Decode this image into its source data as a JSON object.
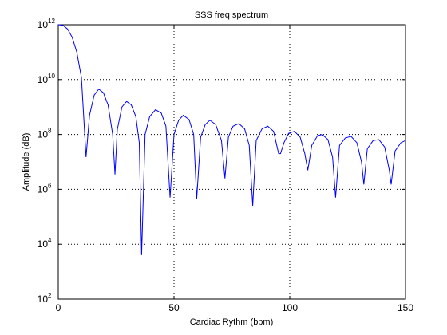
{
  "chart_data": {
    "type": "line",
    "title": "SSS freq spectrum",
    "xlabel": "Cardiac Rythm (bpm)",
    "ylabel": "Amplitude (dB)",
    "xlim": [
      0,
      150
    ],
    "ylim": [
      100,
      1000000000000
    ],
    "yscale": "log",
    "grid": true,
    "line_color": "#0000ff",
    "x_ticks": [
      0,
      50,
      100,
      150
    ],
    "y_ticks": [
      {
        "value": 100,
        "base": "10",
        "exp": "2"
      },
      {
        "value": 10000,
        "base": "10",
        "exp": "4"
      },
      {
        "value": 1000000,
        "base": "10",
        "exp": "6"
      },
      {
        "value": 100000000,
        "base": "10",
        "exp": "8"
      },
      {
        "value": 10000000000,
        "base": "10",
        "exp": "10"
      },
      {
        "value": 1000000000000,
        "base": "10",
        "exp": "12"
      }
    ],
    "series": [
      {
        "points": [
          [
            0,
            1000000000000.0
          ],
          [
            2,
            950000000000.0
          ],
          [
            4,
            700000000000.0
          ],
          [
            6,
            350000000000.0
          ],
          [
            8,
            100000000000.0
          ],
          [
            10,
            12000000000.0
          ],
          [
            12,
            15000000.0
          ],
          [
            13.5,
            500000000.0
          ],
          [
            15.5,
            2700000000.0
          ],
          [
            17.5,
            4500000000.0
          ],
          [
            19.5,
            3300000000.0
          ],
          [
            21.5,
            1200000000.0
          ],
          [
            23.5,
            100000000.0
          ],
          [
            24.5,
            3500000.0
          ],
          [
            25.5,
            150000000.0
          ],
          [
            27.5,
            1000000000.0
          ],
          [
            29.5,
            1600000000.0
          ],
          [
            31.5,
            1200000000.0
          ],
          [
            33.5,
            450000000.0
          ],
          [
            35,
            50000000.0
          ],
          [
            36,
            4000.0
          ],
          [
            37.5,
            100000000.0
          ],
          [
            39.5,
            450000000.0
          ],
          [
            42,
            800000000.0
          ],
          [
            44.5,
            600000000.0
          ],
          [
            46.5,
            200000000.0
          ],
          [
            48.3,
            500000.0
          ],
          [
            50,
            100000000.0
          ],
          [
            52,
            330000000.0
          ],
          [
            54,
            500000000.0
          ],
          [
            56.5,
            350000000.0
          ],
          [
            58.5,
            100000000.0
          ],
          [
            59.8,
            450000.0
          ],
          [
            61.5,
            80000000.0
          ],
          [
            63.5,
            230000000.0
          ],
          [
            65.5,
            330000000.0
          ],
          [
            68,
            230000000.0
          ],
          [
            70.5,
            60000000.0
          ],
          [
            72,
            2500000.0
          ],
          [
            73.5,
            80000000.0
          ],
          [
            75.5,
            200000000.0
          ],
          [
            78,
            250000000.0
          ],
          [
            80.5,
            160000000.0
          ],
          [
            82.5,
            40000000.0
          ],
          [
            84,
            250000.0
          ],
          [
            85.5,
            60000000.0
          ],
          [
            88,
            160000000.0
          ],
          [
            90.5,
            200000000.0
          ],
          [
            93,
            130000000.0
          ],
          [
            95.2,
            20000000.0
          ],
          [
            96,
            20000000.0
          ],
          [
            97.5,
            50000000.0
          ],
          [
            99.5,
            110000000.0
          ],
          [
            102,
            130000000.0
          ],
          [
            104.5,
            80000000.0
          ],
          [
            106.5,
            20000000.0
          ],
          [
            107.8,
            5000000.0
          ],
          [
            109.5,
            40000000.0
          ],
          [
            112,
            90000000.0
          ],
          [
            114,
            100000000.0
          ],
          [
            116.5,
            65000000.0
          ],
          [
            118.5,
            15000000.0
          ],
          [
            119.8,
            500000.0
          ],
          [
            121.5,
            40000000.0
          ],
          [
            124,
            75000000.0
          ],
          [
            126.5,
            85000000.0
          ],
          [
            129,
            50000000.0
          ],
          [
            131,
            10000000.0
          ],
          [
            132,
            1500000.0
          ],
          [
            133.5,
            30000000.0
          ],
          [
            136,
            60000000.0
          ],
          [
            138.5,
            65000000.0
          ],
          [
            141,
            35000000.0
          ],
          [
            143,
            5000000.0
          ],
          [
            143.8,
            1500000.0
          ],
          [
            145.5,
            25000000.0
          ],
          [
            148,
            50000000.0
          ],
          [
            150,
            60000000.0
          ]
        ]
      }
    ]
  }
}
